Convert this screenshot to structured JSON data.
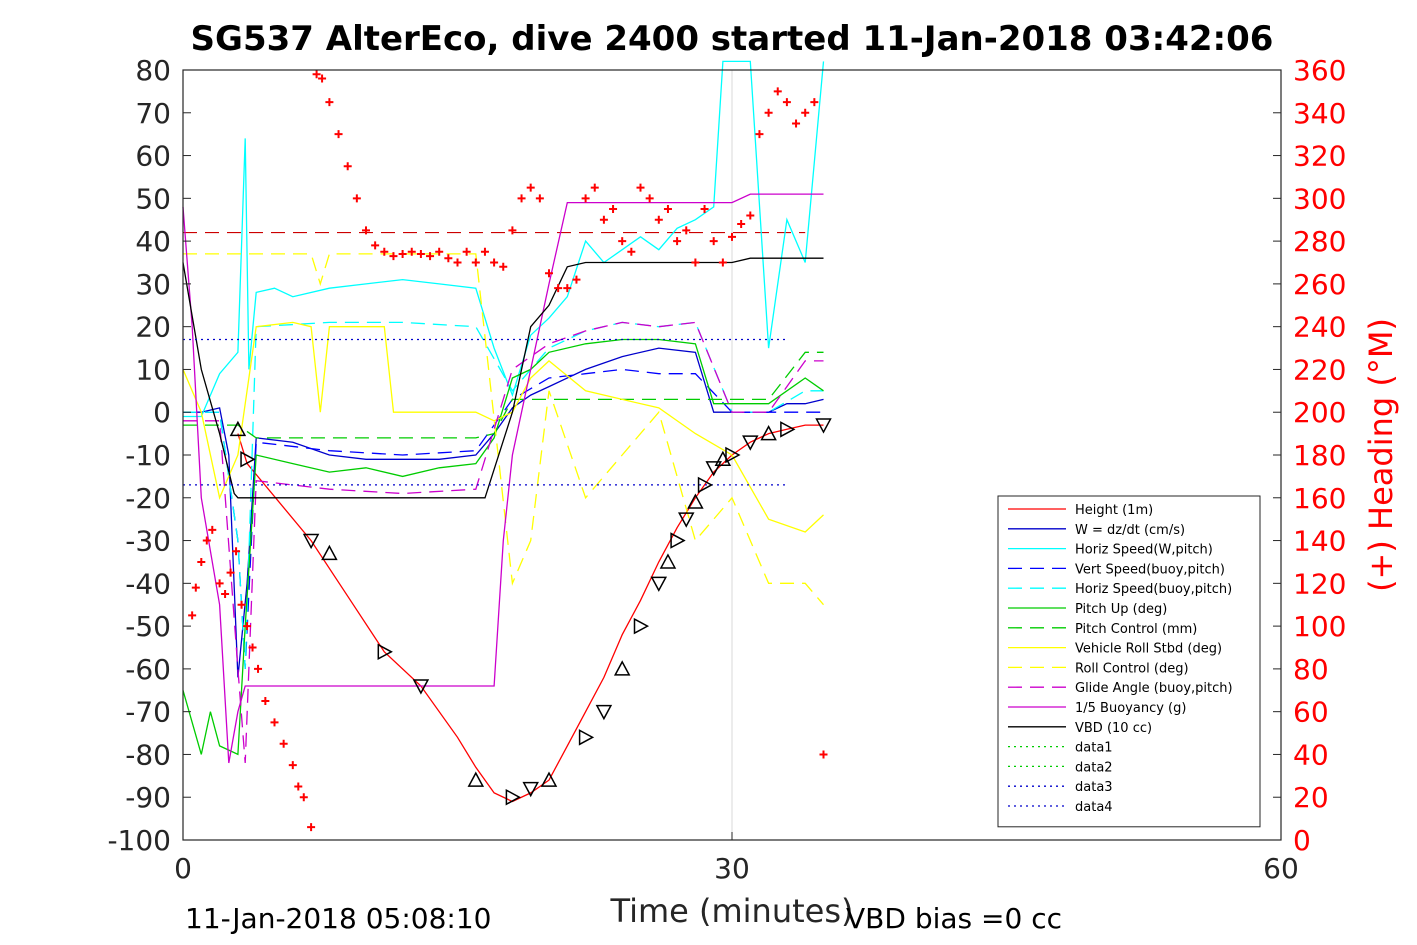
{
  "chart_data": {
    "type": "line",
    "title": "SG537 AlterEco, dive 2400 started 11-Jan-2018 03:42:06",
    "xlabel": "Time (minutes)",
    "ylabel": "",
    "y2label": "(+) Heading (°M)",
    "xlim": [
      0,
      60
    ],
    "ylim": [
      -100,
      80
    ],
    "y2lim": [
      0,
      360
    ],
    "xticks": [
      0,
      30,
      60
    ],
    "yticks": [
      80,
      70,
      60,
      50,
      40,
      30,
      20,
      10,
      0,
      -10,
      -20,
      -30,
      -40,
      -50,
      -60,
      -70,
      -80,
      -90,
      -100
    ],
    "y2ticks": [
      360,
      340,
      320,
      300,
      280,
      260,
      240,
      220,
      200,
      180,
      160,
      140,
      120,
      100,
      80,
      60,
      40,
      20,
      0
    ],
    "xgrid": [
      30
    ],
    "legend_position": "lower-right",
    "footer_left": "11-Jan-2018 05:08:10",
    "footer_right": "VBD bias =0 cc",
    "series": [
      {
        "name": "Height (1m)",
        "color": "#ff0000",
        "style": "solid",
        "x": [
          3,
          3.5,
          7,
          9,
          11,
          13,
          15,
          16,
          17,
          18,
          19,
          20,
          21,
          22,
          23,
          24,
          25,
          26,
          27,
          28,
          29,
          30,
          31,
          32,
          33,
          34,
          35
        ],
        "y": [
          -5,
          -12,
          -30,
          -43,
          -56,
          -64,
          -76,
          -83,
          -89,
          -91,
          -89,
          -86,
          -78,
          -70,
          -62,
          -52,
          -44,
          -35,
          -27,
          -20,
          -14,
          -10,
          -7,
          -5,
          -4,
          -3,
          -3
        ]
      },
      {
        "name": "W = dz/dt (cm/s)",
        "color": "#0000cc",
        "style": "solid",
        "x": [
          0,
          1,
          2,
          2.5,
          3,
          3.5,
          4,
          6,
          8,
          10,
          12,
          14,
          16,
          17,
          18,
          19,
          20,
          22,
          24,
          26,
          28,
          29,
          30,
          31,
          32,
          33,
          34,
          35
        ],
        "y": [
          0,
          0,
          1,
          -10,
          -62,
          -40,
          -6,
          -7,
          -10,
          -11,
          -11,
          -11,
          -10,
          -5,
          1,
          4,
          6,
          10,
          13,
          15,
          14,
          0,
          0,
          0,
          0,
          2,
          2,
          3
        ]
      },
      {
        "name": "Horiz Speed(W,pitch)",
        "color": "#00ffff",
        "style": "solid",
        "x": [
          0,
          1,
          2,
          3,
          3.4,
          3.6,
          4,
          5,
          6,
          8,
          10,
          12,
          14,
          16,
          17,
          18,
          19,
          20,
          21,
          22,
          23,
          24,
          25,
          26,
          27,
          28,
          29,
          29.5,
          30,
          31,
          32,
          33,
          34,
          35
        ],
        "y": [
          -1,
          -1,
          9,
          14,
          64,
          10,
          28,
          29,
          27,
          29,
          30,
          31,
          30,
          29,
          15,
          4,
          18,
          22,
          27,
          40,
          35,
          38,
          41,
          38,
          43,
          45,
          48,
          82,
          82,
          82,
          15,
          45,
          35,
          82
        ]
      },
      {
        "name": "Vert Speed(buoy,pitch)",
        "color": "#0000ff",
        "style": "dashed",
        "x": [
          0,
          2,
          3,
          3.4,
          4,
          8,
          12,
          16,
          18,
          20,
          22,
          24,
          26,
          28,
          30,
          32,
          34,
          35
        ],
        "y": [
          0,
          0,
          -30,
          -60,
          -7,
          -9,
          -10,
          -9,
          3,
          8,
          9,
          10,
          9,
          9,
          0,
          0,
          0,
          0
        ]
      },
      {
        "name": "Horiz Speed(buoy,pitch)",
        "color": "#00ffff",
        "style": "dashed",
        "x": [
          0,
          2,
          3,
          3.4,
          4,
          8,
          12,
          16,
          18,
          20,
          22,
          24,
          26,
          28,
          30,
          32,
          34,
          35
        ],
        "y": [
          0,
          0,
          -30,
          -60,
          20,
          21,
          21,
          20,
          5,
          15,
          19,
          21,
          20,
          21,
          0,
          0,
          5,
          5
        ]
      },
      {
        "name": "Pitch Up (deg)",
        "color": "#00cc00",
        "style": "solid",
        "x": [
          0,
          1,
          1.5,
          2,
          3,
          3.4,
          4,
          6,
          8,
          10,
          12,
          14,
          16,
          17,
          18,
          19,
          20,
          22,
          24,
          26,
          28,
          29,
          30,
          32,
          34,
          35
        ],
        "y": [
          -65,
          -80,
          -70,
          -78,
          -80,
          -50,
          -10,
          -12,
          -14,
          -13,
          -15,
          -13,
          -12,
          -6,
          8,
          10,
          14,
          16,
          17,
          17,
          16,
          2,
          2,
          2,
          8,
          5
        ]
      },
      {
        "name": "Pitch Control (mm)",
        "color": "#00cc00",
        "style": "dashed",
        "x": [
          0,
          3,
          4,
          8,
          12,
          16,
          17,
          18,
          20,
          25,
          30,
          32,
          34,
          35
        ],
        "y": [
          -3,
          -3,
          -6,
          -6,
          -6,
          -6,
          -5,
          3,
          3,
          3,
          3,
          3,
          14,
          14
        ]
      },
      {
        "name": "Vehicle Roll Stbd (deg)",
        "color": "#ffff00",
        "style": "solid",
        "x": [
          0,
          1,
          2,
          3,
          4,
          6,
          7,
          7.5,
          8,
          10,
          11,
          11.5,
          12,
          14,
          16,
          17,
          18,
          19,
          20,
          22,
          24,
          26,
          28,
          30,
          32,
          34,
          35
        ],
        "y": [
          10,
          0,
          -20,
          -10,
          20,
          21,
          20,
          0,
          20,
          20,
          20,
          0,
          0,
          0,
          0,
          -2,
          0,
          8,
          12,
          5,
          3,
          1,
          -5,
          -10,
          -25,
          -28,
          -24
        ]
      },
      {
        "name": "Roll Control (deg)",
        "color": "#ffff00",
        "style": "dashed",
        "x": [
          0,
          2,
          3,
          4,
          6,
          7,
          7.5,
          8,
          10,
          12,
          16,
          18,
          19,
          20,
          22,
          24,
          26,
          28,
          30,
          32,
          34,
          35
        ],
        "y": [
          37,
          37,
          37,
          37,
          37,
          37,
          30,
          37,
          37,
          37,
          37,
          -40,
          -30,
          5,
          -20,
          -10,
          0,
          -30,
          -20,
          -40,
          -40,
          -45
        ]
      },
      {
        "name": "Glide Angle (buoy,pitch)",
        "color": "#cc00cc",
        "style": "dashed",
        "x": [
          0,
          2,
          3,
          3.4,
          4,
          8,
          12,
          16,
          18,
          20,
          22,
          24,
          26,
          28,
          30,
          32,
          34,
          35
        ],
        "y": [
          -2,
          -2,
          -60,
          -82,
          -16,
          -18,
          -19,
          -18,
          10,
          16,
          19,
          21,
          20,
          21,
          0,
          0,
          12,
          12
        ]
      },
      {
        "name": "1/5 Buoyancy (g)",
        "color": "#cc00cc",
        "style": "solid",
        "x": [
          0,
          0.5,
          1,
          2,
          2.5,
          3,
          3.4,
          4,
          8,
          12,
          16,
          17,
          17.5,
          18,
          19,
          20,
          21,
          22,
          25,
          30,
          31,
          33,
          35
        ],
        "y": [
          48,
          20,
          -20,
          -45,
          -82,
          -70,
          -64,
          -64,
          -64,
          -64,
          -64,
          -64,
          -30,
          -10,
          10,
          30,
          49,
          49,
          49,
          49,
          51,
          51,
          51
        ]
      },
      {
        "name": "VBD (10 cc)",
        "color": "#000000",
        "style": "solid",
        "x": [
          0,
          1,
          2,
          2.8,
          3,
          4,
          8,
          12,
          16,
          16.5,
          18,
          19,
          20,
          21,
          22,
          25,
          30,
          31,
          35
        ],
        "y": [
          35,
          10,
          -5,
          -19,
          -20,
          -20,
          -20,
          -20,
          -20,
          -20,
          0,
          20,
          25,
          34,
          35,
          35,
          35,
          36,
          36
        ]
      },
      {
        "name": "data1",
        "color": "#00cc00",
        "style": "dotted",
        "x": [],
        "y": []
      },
      {
        "name": "data2",
        "color": "#00cc00",
        "style": "dotted",
        "x": [],
        "y": []
      },
      {
        "name": "data3",
        "color": "#0000cc",
        "style": "dotted",
        "x": [
          0,
          33
        ],
        "y": [
          17,
          17
        ]
      },
      {
        "name": "data4",
        "color": "#0000cc",
        "style": "dotted",
        "x": [
          0,
          33
        ],
        "y": [
          -17,
          -17
        ]
      }
    ],
    "reference_lines": [
      {
        "axis": "y2",
        "value": 284,
        "color": "#cc0000",
        "style": "dashed",
        "x": [
          0,
          34
        ]
      }
    ],
    "heading": {
      "axis": "y2",
      "color": "#ff0000",
      "marker": "+",
      "x": [
        0.5,
        0.7,
        1,
        1.3,
        1.6,
        2,
        2.3,
        2.6,
        2.9,
        3.2,
        3.5,
        3.8,
        4.1,
        4.5,
        5,
        5.5,
        6,
        6.3,
        6.6,
        7,
        7.3,
        7.6,
        8,
        8.5,
        9,
        9.5,
        10,
        10.5,
        11,
        11.5,
        12,
        12.5,
        13,
        13.5,
        14,
        14.5,
        15,
        15.5,
        16,
        16.5,
        17,
        17.5,
        18,
        18.5,
        19,
        19.5,
        20,
        20.5,
        21,
        21.5,
        22,
        22.5,
        23,
        23.5,
        24,
        24.5,
        25,
        25.5,
        26,
        26.5,
        27,
        27.5,
        28,
        28.5,
        29,
        29.5,
        30,
        30.5,
        31,
        31.5,
        32,
        32.5,
        33,
        33.5,
        34,
        34.5,
        35
      ],
      "y": [
        105,
        118,
        130,
        140,
        145,
        120,
        115,
        125,
        135,
        110,
        100,
        90,
        80,
        65,
        55,
        45,
        35,
        25,
        20,
        6,
        358,
        356,
        345,
        330,
        315,
        300,
        285,
        278,
        275,
        273,
        274,
        275,
        274,
        273,
        275,
        272,
        270,
        275,
        270,
        275,
        270,
        268,
        285,
        300,
        305,
        300,
        265,
        258,
        258,
        262,
        300,
        305,
        290,
        295,
        280,
        275,
        305,
        300,
        290,
        295,
        280,
        285,
        270,
        295,
        280,
        270,
        282,
        288,
        292,
        330,
        340,
        350,
        345,
        335,
        340,
        345,
        40
      ]
    },
    "markers_triangles": {
      "x": [
        3,
        3.5,
        7,
        8,
        11,
        13,
        16,
        18,
        19,
        20,
        22,
        23,
        24,
        25,
        26,
        26.5,
        27,
        27.5,
        28,
        28.5,
        29,
        29.5,
        30,
        31,
        32,
        33,
        35
      ],
      "y": [
        -4,
        -11,
        -30,
        -33,
        -56,
        -64,
        -86,
        -90,
        -88,
        -86,
        -76,
        -70,
        -60,
        -50,
        -40,
        -35,
        -30,
        -25,
        -21,
        -17,
        -13,
        -11,
        -10,
        -7,
        -5,
        -4,
        -3
      ]
    }
  }
}
